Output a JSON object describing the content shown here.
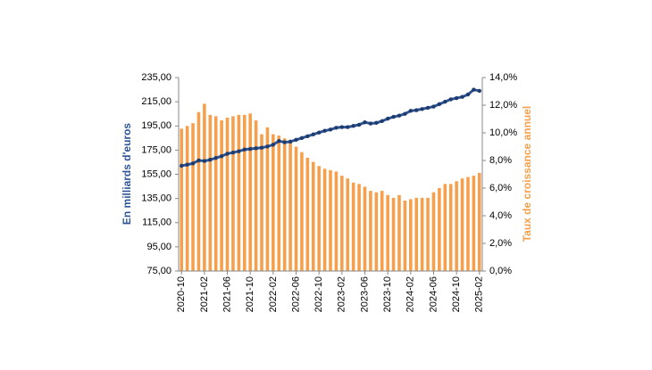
{
  "chart_data": {
    "type": "bar_line",
    "y_label": "En milliards d'euros",
    "y2_label": "Taux de croissance annuel",
    "categories": [
      "2020-10",
      null,
      null,
      null,
      "2021-02",
      null,
      null,
      null,
      "2021-06",
      null,
      null,
      null,
      "2021-10",
      null,
      null,
      null,
      "2022-02",
      null,
      null,
      null,
      "2022-06",
      null,
      null,
      null,
      "2022-10",
      null,
      null,
      null,
      "2023-02",
      null,
      null,
      null,
      "2023-06",
      null,
      null,
      null,
      "2023-10",
      null,
      null,
      null,
      "2024-02",
      null,
      null,
      null,
      "2024-06",
      null,
      null,
      null,
      "2024-10",
      null,
      null,
      null,
      "2025-02"
    ],
    "series": [
      {
        "type": "bar",
        "axis": "y2",
        "color": "#f6a04d",
        "values": [
          10.3,
          10.5,
          10.7,
          11.5,
          12.1,
          11.3,
          11.2,
          10.9,
          11.1,
          11.2,
          11.3,
          11.3,
          11.4,
          10.9,
          9.9,
          10.4,
          9.9,
          9.8,
          9.6,
          9.3,
          9.0,
          8.6,
          8.2,
          7.9,
          7.6,
          7.4,
          7.3,
          7.2,
          6.9,
          6.7,
          6.4,
          6.3,
          6.1,
          5.8,
          5.7,
          5.8,
          5.5,
          5.3,
          5.5,
          5.1,
          5.2,
          5.3,
          5.3,
          5.3,
          5.7,
          6.0,
          6.3,
          6.3,
          6.5,
          6.7,
          6.8,
          6.9,
          7.1
        ]
      },
      {
        "type": "line",
        "axis": "y",
        "color": "#2f5597",
        "values": [
          162,
          163,
          164,
          166.5,
          166,
          167,
          168.5,
          170,
          172,
          173,
          174,
          175.5,
          176,
          176.5,
          177,
          178,
          179.5,
          182.5,
          181.5,
          182,
          183.5,
          185,
          186.5,
          188,
          189.5,
          191,
          192,
          193.5,
          194,
          194,
          195,
          196,
          198,
          197,
          197.5,
          199,
          201,
          202.5,
          203.5,
          205,
          207.5,
          208,
          209,
          210,
          211,
          213,
          215,
          217,
          218,
          219,
          221,
          225,
          224
        ]
      }
    ],
    "ylim": [
      75,
      235
    ],
    "yticks": [
      {
        "value": 75,
        "label": "75,00"
      },
      {
        "value": 95,
        "label": "95,00"
      },
      {
        "value": 115,
        "label": "115,00"
      },
      {
        "value": 135,
        "label": "135,00"
      },
      {
        "value": 155,
        "label": "155,00"
      },
      {
        "value": 175,
        "label": "175,00"
      },
      {
        "value": 195,
        "label": "195,00"
      },
      {
        "value": 215,
        "label": "215,00"
      },
      {
        "value": 235,
        "label": "235,00"
      }
    ],
    "y2lim": [
      0,
      14
    ],
    "y2ticks": [
      {
        "value": 0,
        "label": "0,0%"
      },
      {
        "value": 2,
        "label": "2,0%"
      },
      {
        "value": 4,
        "label": "4,0%"
      },
      {
        "value": 6,
        "label": "6,0%"
      },
      {
        "value": 8,
        "label": "8,0%"
      },
      {
        "value": 10,
        "label": "10,0%"
      },
      {
        "value": 12,
        "label": "12,0%"
      },
      {
        "value": 14,
        "label": "14,0%"
      }
    ],
    "grid": false
  }
}
